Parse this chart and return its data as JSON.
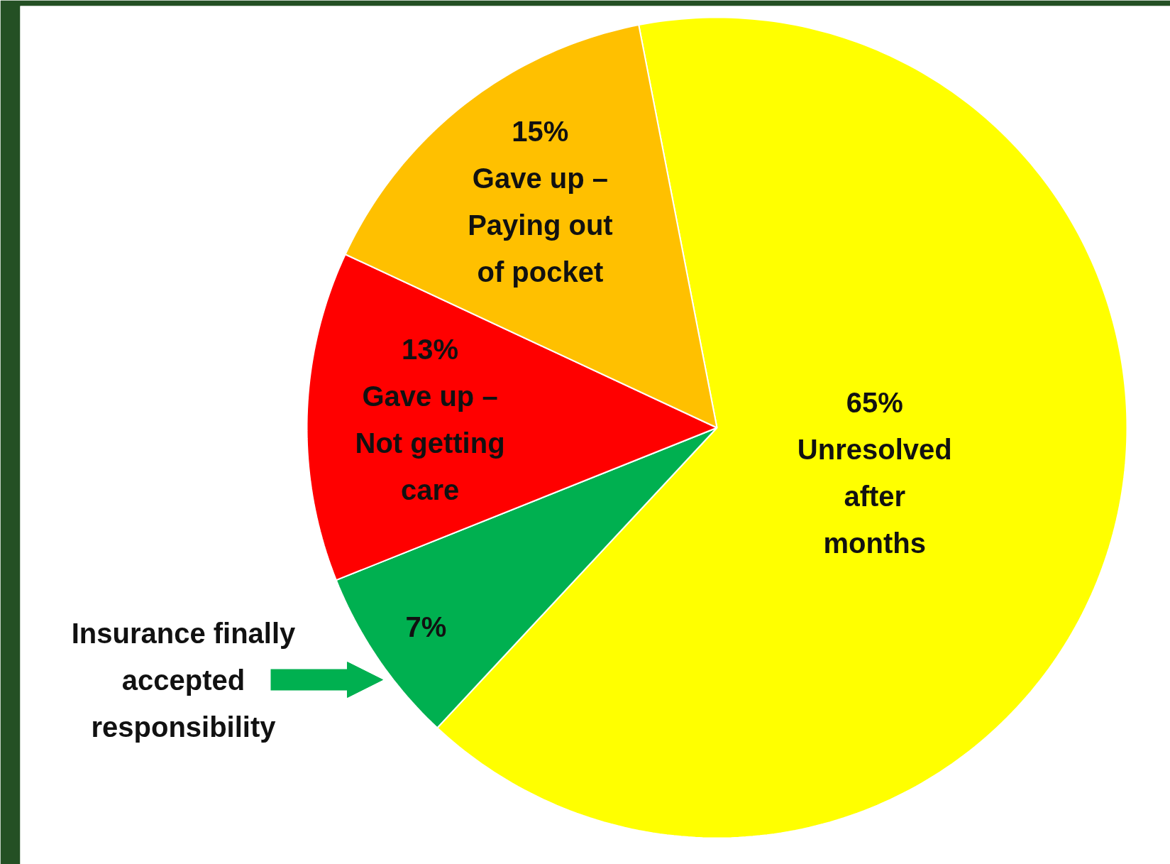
{
  "chart_data": {
    "type": "pie",
    "categories": [
      "Unresolved\nafter\nmonths",
      "Insurance finally\naccepted\nresponsibility",
      "Gave up –\nNot getting\ncare",
      "Gave up –\nPaying out\nof pocket"
    ],
    "values": [
      65,
      7,
      13,
      15
    ],
    "value_labels": [
      "65%",
      "7%",
      "13%",
      "15%"
    ],
    "colors": [
      "#ffff00",
      "#00b050",
      "#ff0000",
      "#ffc000"
    ]
  }
}
